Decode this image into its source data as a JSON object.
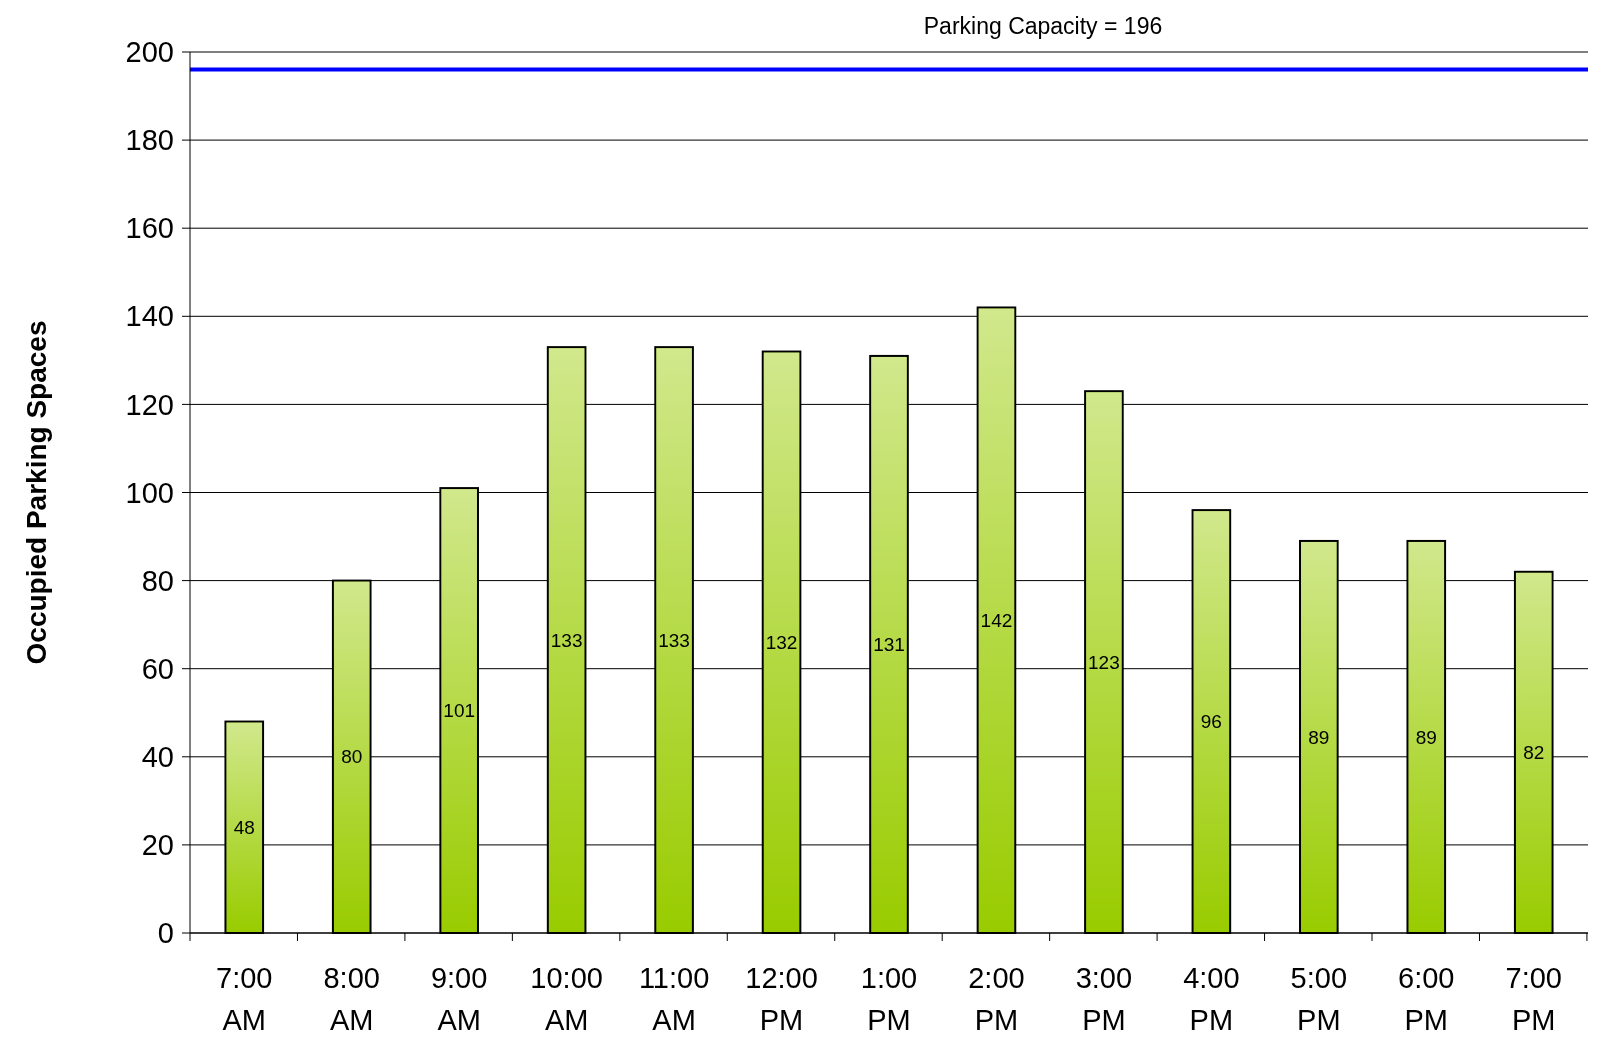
{
  "chart_data": {
    "type": "bar",
    "ylabel": "Occupied Parking Spaces",
    "categories": [
      "7:00 AM",
      "8:00 AM",
      "9:00 AM",
      "10:00 AM",
      "11:00 AM",
      "12:00 PM",
      "1:00 PM",
      "2:00 PM",
      "3:00 PM",
      "4:00 PM",
      "5:00 PM",
      "6:00 PM",
      "7:00 PM"
    ],
    "values": [
      48,
      80,
      101,
      133,
      133,
      132,
      131,
      142,
      123,
      96,
      89,
      89,
      82
    ],
    "color": "#99cc00",
    "ylim": [
      0,
      200
    ],
    "yticks": [
      0,
      20,
      40,
      60,
      80,
      100,
      120,
      140,
      160,
      180,
      200
    ],
    "grid": "y",
    "data_labels": true,
    "ref_lines": [
      {
        "axis": "y",
        "value": 196,
        "label": "Parking Capacity = 196",
        "color": "#0000ff"
      }
    ]
  }
}
